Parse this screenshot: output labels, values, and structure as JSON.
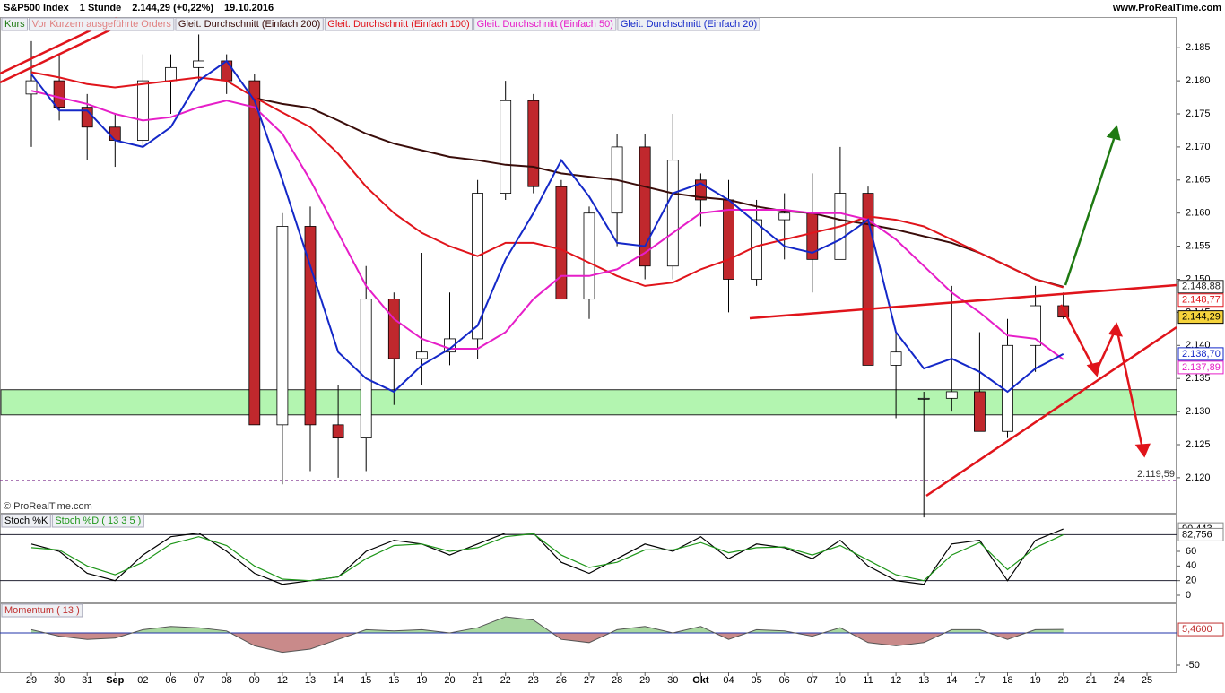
{
  "header": {
    "title": "S&P500 Index",
    "interval": "1 Stunde",
    "last": "2.144,29 (+0,22%)",
    "date": "19.10.2016",
    "site": "www.ProRealTime.com",
    "copyright": "© ProRealTime.com"
  },
  "chart_data": [
    {
      "type": "candlestick",
      "legend": [
        "Kurs",
        "Vor Kurzem ausgeführte Orders"
      ],
      "categories": [
        "29",
        "30",
        "31",
        "Sep",
        "02",
        "06",
        "07",
        "08",
        "09",
        "12",
        "13",
        "14",
        "15",
        "16",
        "19",
        "20",
        "21",
        "22",
        "23",
        "26",
        "27",
        "28",
        "29",
        "30",
        "Okt",
        "04",
        "05",
        "06",
        "07",
        "10",
        "11",
        "12",
        "13",
        "14",
        "17",
        "18",
        "19",
        "20",
        "21",
        "24",
        "25"
      ],
      "open": [
        2178,
        2180,
        2176,
        2173,
        2171,
        2180,
        2182,
        2183,
        2180,
        2128,
        2158,
        2128,
        2126,
        2147,
        2138,
        2139,
        2141,
        2163,
        2177,
        2164,
        2147,
        2160,
        2170,
        2152,
        2165,
        2162,
        2150,
        2159,
        2160,
        2153,
        2163,
        2137,
        2132,
        2132,
        2133,
        2127,
        2140,
        2146,
        null,
        null,
        null
      ],
      "high": [
        2186,
        2184,
        2178,
        2175,
        2184,
        2184,
        2187,
        2184,
        2181,
        2160,
        2161,
        2134,
        2152,
        2148,
        2154,
        2148,
        2165,
        2180,
        2178,
        2165,
        2161,
        2172,
        2172,
        2175,
        2166,
        2165,
        2162,
        2163,
        2166,
        2170,
        2164,
        2142,
        2133,
        2149,
        2142,
        2144,
        2149,
        2148,
        null,
        null,
        null
      ],
      "low": [
        2170,
        2174,
        2168,
        2167,
        2170,
        2175,
        2180,
        2178,
        2128,
        2119,
        2121,
        2120,
        2121,
        2131,
        2134,
        2137,
        2138,
        2162,
        2163,
        2147,
        2144,
        2155,
        2150,
        2150,
        2158,
        2145,
        2149,
        2153,
        2148,
        2153,
        2137,
        2129,
        2114,
        2130,
        2127,
        2126,
        2136,
        2144,
        null,
        null,
        null
      ],
      "close": [
        2180,
        2176,
        2173,
        2171,
        2180,
        2182,
        2183,
        2180,
        2128,
        2158,
        2128,
        2126,
        2147,
        2138,
        2139,
        2141,
        2163,
        2177,
        2164,
        2147,
        2160,
        2170,
        2152,
        2168,
        2162,
        2150,
        2159,
        2160,
        2153,
        2163,
        2137,
        2139,
        2132,
        2133,
        2127,
        2140,
        2146,
        2144.29,
        null,
        null,
        null
      ],
      "up_color": "#ffffff",
      "down_color": "#c0282d",
      "series": [
        {
          "name": "Gleit. Durchschnitt (Einfach 200)",
          "color": "#3a0d0a",
          "values": [
            null,
            null,
            null,
            null,
            null,
            null,
            null,
            null,
            2177.4,
            2176.5,
            2175.9,
            2174,
            2172,
            2170.5,
            2169.5,
            2168.5,
            2168,
            2167.3,
            2167,
            2166,
            2165.5,
            2165,
            2164,
            2163,
            2162.4,
            2162,
            2161,
            2160.3,
            2160,
            2159,
            2158.3,
            2157.5,
            2156.5,
            2155.5,
            2154,
            2152,
            2150,
            2148.88,
            null,
            null,
            null
          ]
        },
        {
          "name": "Gleit. Durchschnitt (Einfach 100)",
          "color": "#e0141b",
          "values": [
            2181.3,
            2180.5,
            2179.5,
            2179,
            2179.5,
            2180,
            2180.5,
            2180,
            2177.5,
            2175.2,
            2173,
            2169,
            2164,
            2160,
            2157,
            2155,
            2153.5,
            2155.5,
            2155.5,
            2154.5,
            2152.5,
            2150.5,
            2149,
            2149.5,
            2151.5,
            2153,
            2155,
            2156,
            2157,
            2158,
            2159.5,
            2159,
            2158,
            2156,
            2154,
            2152,
            2150,
            2148.77,
            null,
            null,
            null
          ]
        },
        {
          "name": "Gleit. Durchschnitt (Einfach 50)",
          "color": "#e61ec8",
          "values": [
            2178.5,
            2177.5,
            2176.5,
            2175,
            2174,
            2174.5,
            2176,
            2177,
            2176,
            2172,
            2165,
            2157,
            2149,
            2144,
            2141,
            2139.5,
            2139.5,
            2142,
            2147,
            2150.5,
            2150.5,
            2151.5,
            2154,
            2157,
            2160,
            2160.5,
            2160.5,
            2160.5,
            2160,
            2160,
            2159,
            2156,
            2152,
            2148,
            2145,
            2141.5,
            2141,
            2137.89,
            null,
            null,
            null
          ]
        },
        {
          "name": "Gleit. Durchschnitt (Einfach 20)",
          "color": "#1428c8",
          "values": [
            2181,
            2175.5,
            2175.5,
            2171,
            2170,
            2173,
            2180,
            2183,
            2177,
            2165,
            2152,
            2139,
            2135,
            2133,
            2137,
            2139.5,
            2143,
            2153,
            2160,
            2168,
            2162.5,
            2155.5,
            2155,
            2163,
            2164.5,
            2162,
            2158.5,
            2155,
            2154,
            2156,
            2159,
            2142,
            2136.5,
            2138,
            2136,
            2133,
            2136.5,
            2138.7,
            null,
            null,
            null
          ]
        }
      ],
      "price_labels": [
        {
          "value": 2148.88,
          "label": "2.148,88",
          "color": "#222222"
        },
        {
          "value": 2148.77,
          "label": "2.148,77",
          "color": "#e0141b"
        },
        {
          "value": 2144.29,
          "label": "2.144,29",
          "color": "#000000"
        },
        {
          "value": 2138.7,
          "label": "2.138,70",
          "color": "#1428c8"
        },
        {
          "value": 2137.89,
          "label": "2.137,89",
          "color": "#e61ec8"
        }
      ],
      "support": {
        "value": 2119.59,
        "label": "2.119,59"
      },
      "ylim": [
        2114.7,
        2189.5
      ],
      "yticks": [
        {
          "value": 2120,
          "label": "2.120"
        },
        {
          "value": 2125,
          "label": "2.125"
        },
        {
          "value": 2130,
          "label": "2.130"
        },
        {
          "value": 2135,
          "label": "2.135"
        },
        {
          "value": 2140,
          "label": "2.140"
        },
        {
          "value": 2145,
          "label": "2.145"
        },
        {
          "value": 2150,
          "label": "2.150"
        },
        {
          "value": 2155,
          "label": "2.155"
        },
        {
          "value": 2160,
          "label": "2.160"
        },
        {
          "value": 2165,
          "label": "2.165"
        },
        {
          "value": 2170,
          "label": "2.170"
        },
        {
          "value": 2175,
          "label": "2.175"
        },
        {
          "value": 2180,
          "label": "2.180"
        },
        {
          "value": 2185,
          "label": "2.185"
        }
      ]
    },
    {
      "type": "line",
      "series": [
        {
          "name": "Stoch %K",
          "color": "#000000",
          "values": [
            70,
            60,
            30,
            20,
            55,
            80,
            85,
            60,
            30,
            15,
            20,
            25,
            60,
            75,
            70,
            55,
            70,
            85,
            85,
            45,
            30,
            50,
            70,
            60,
            80,
            50,
            70,
            65,
            50,
            75,
            40,
            20,
            15,
            70,
            75,
            20,
            75,
            90.443
          ]
        },
        {
          "name": "Stoch %D ( 13 3 5 )",
          "color": "#1e9619",
          "values": [
            65,
            62,
            40,
            28,
            45,
            70,
            80,
            68,
            40,
            22,
            20,
            25,
            50,
            68,
            70,
            60,
            65,
            80,
            84,
            55,
            38,
            45,
            62,
            62,
            72,
            58,
            65,
            66,
            55,
            68,
            48,
            28,
            20,
            55,
            72,
            35,
            65,
            82.756
          ]
        }
      ],
      "value_labels": [
        {
          "value": 90.443,
          "label": "90,443"
        },
        {
          "value": 82.756,
          "label": "82,756"
        }
      ],
      "levels": [
        20,
        82.756
      ],
      "ylim": [
        -9.8,
        110.2
      ],
      "yticks": [
        0,
        20,
        40,
        60
      ]
    },
    {
      "type": "area",
      "series": [
        {
          "name": "Momentum ( 13 )",
          "color": "#555555",
          "values": [
            5,
            -5,
            -10,
            -8,
            5,
            10,
            8,
            3,
            -20,
            -30,
            -25,
            -10,
            5,
            3,
            5,
            0,
            8,
            25,
            20,
            -10,
            -15,
            5,
            10,
            0,
            10,
            -10,
            5,
            3,
            -5,
            8,
            -15,
            -20,
            -15,
            5,
            5,
            -10,
            5,
            5.46
          ]
        }
      ],
      "value_labels": [
        {
          "value": 5.46,
          "label": "5,4600"
        }
      ],
      "ylim": [
        -61.1,
        44.4
      ],
      "yticks": [
        -50
      ]
    }
  ]
}
